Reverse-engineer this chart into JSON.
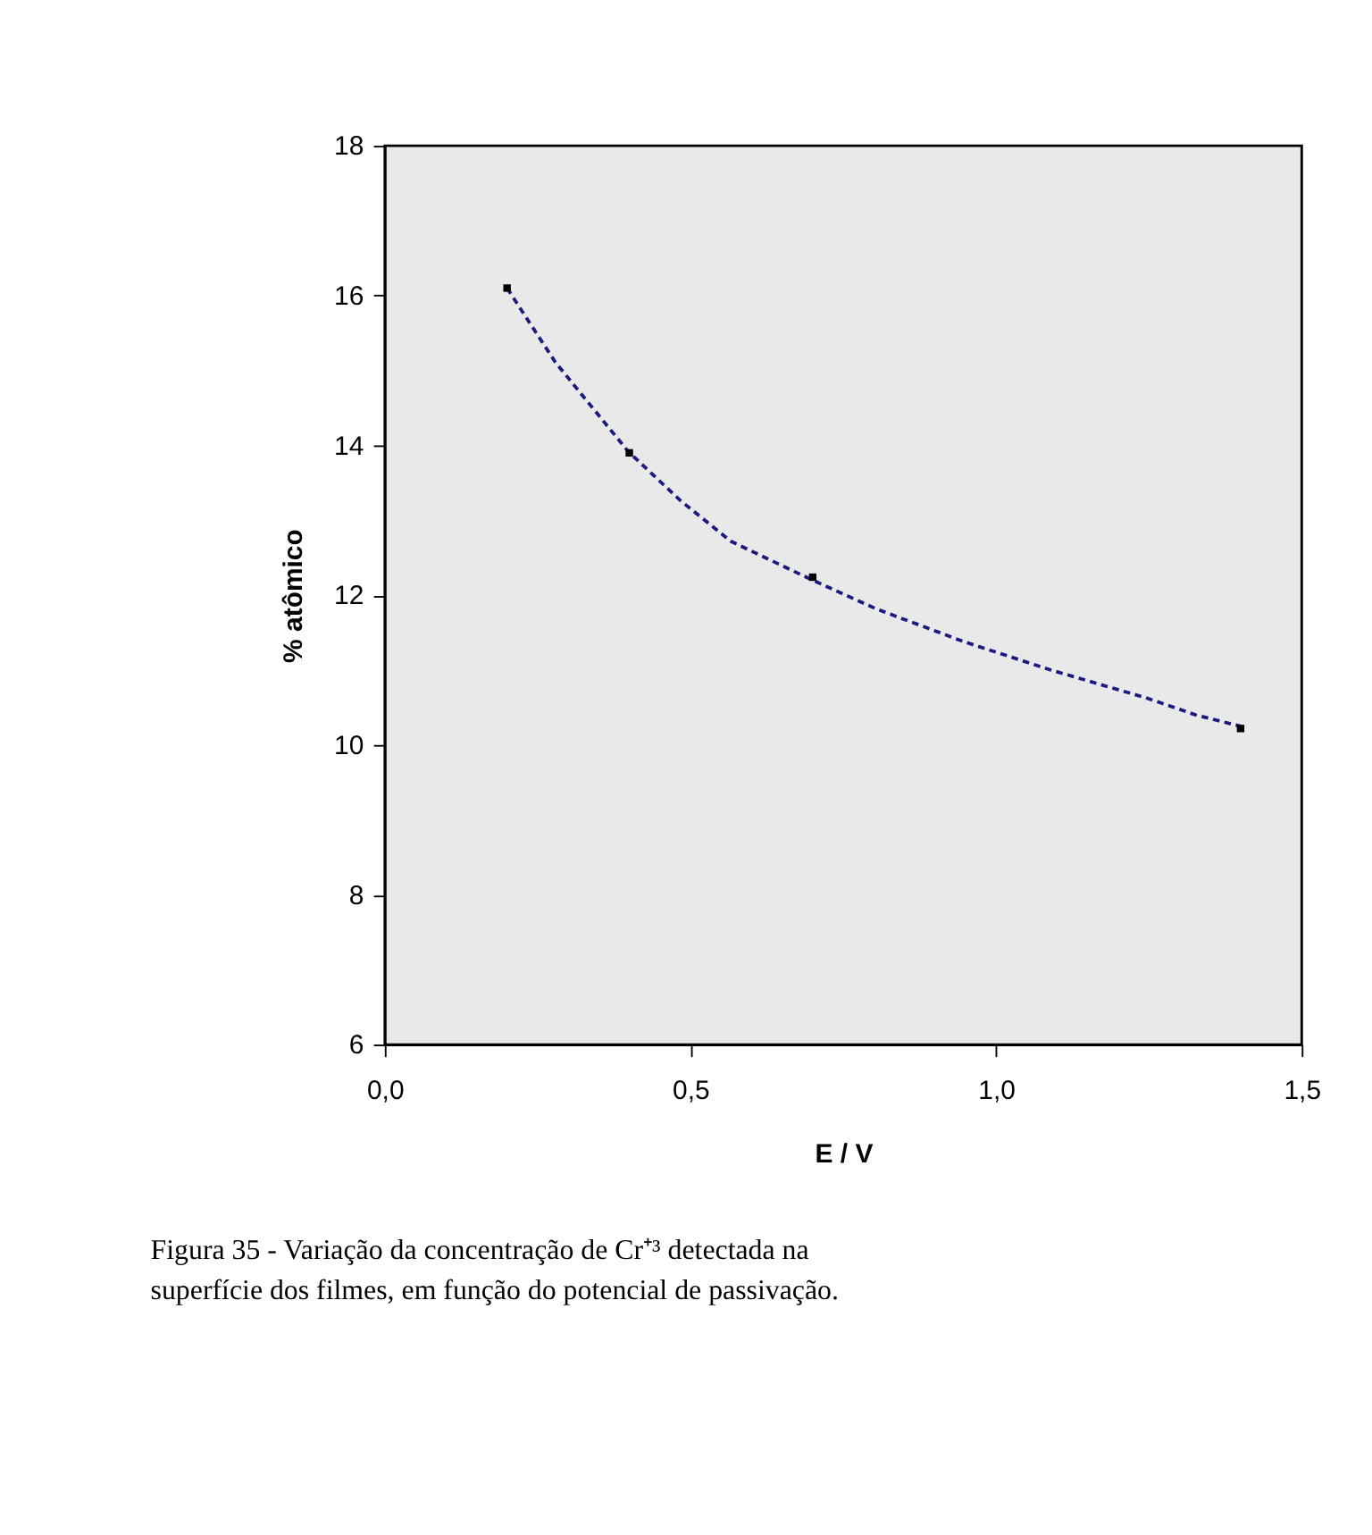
{
  "chart_data": {
    "type": "scatter",
    "xlabel": "E / V",
    "ylabel": "% atômico",
    "series": [
      {
        "color": "#000000",
        "marker": "square",
        "x": [
          0.2,
          0.4,
          0.7,
          1.4
        ],
        "values": [
          16.1,
          13.9,
          12.24,
          10.22
        ]
      },
      {
        "type": "line",
        "color": "#1a1a80",
        "line_style": "dashed",
        "marker": "none",
        "x": [
          0.2,
          0.279,
          0.398,
          0.484,
          0.566,
          0.7,
          0.803,
          0.947,
          1.09,
          1.245,
          1.327,
          1.4
        ],
        "values": [
          16.1,
          15.11,
          13.92,
          13.26,
          12.72,
          12.2,
          11.82,
          11.38,
          11.0,
          10.63,
          10.4,
          10.25
        ]
      }
    ],
    "xlim": [
      0,
      1.5
    ],
    "xticks": [
      {
        "value": 0,
        "label": "0,0"
      },
      {
        "value": 0.5,
        "label": "0,5"
      },
      {
        "value": 1,
        "label": "1,0"
      },
      {
        "value": 1.5,
        "label": "1,5"
      }
    ],
    "ylim": [
      6,
      18
    ],
    "yticks": [
      6,
      8,
      10,
      12,
      14,
      16,
      18
    ],
    "grid": false,
    "annotations": [
      "Figura 35 - Variação da concentração de Cr⁺³ detectada na superfície dos filmes, em função do potencial de passivação."
    ]
  }
}
